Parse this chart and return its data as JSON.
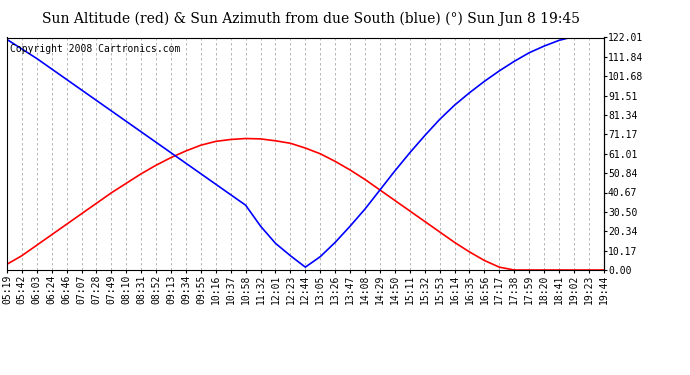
{
  "title": "Sun Altitude (red) & Sun Azimuth from due South (blue) (°) Sun Jun 8 19:45",
  "copyright": "Copyright 2008 Cartronics.com",
  "ymin": 0.0,
  "ymax": 122.01,
  "yticks": [
    0.0,
    10.17,
    20.34,
    30.5,
    40.67,
    50.84,
    61.01,
    71.17,
    81.34,
    91.51,
    101.68,
    111.84,
    122.01
  ],
  "x_labels": [
    "05:19",
    "05:42",
    "06:03",
    "06:24",
    "06:46",
    "07:07",
    "07:28",
    "07:49",
    "08:10",
    "08:31",
    "08:52",
    "09:13",
    "09:34",
    "09:55",
    "10:16",
    "10:37",
    "10:58",
    "11:32",
    "12:01",
    "12:23",
    "12:44",
    "13:05",
    "13:26",
    "13:47",
    "14:08",
    "14:29",
    "14:50",
    "15:11",
    "15:32",
    "15:53",
    "16:14",
    "16:35",
    "16:56",
    "17:17",
    "17:38",
    "17:59",
    "18:20",
    "18:41",
    "19:02",
    "19:23",
    "19:44"
  ],
  "red_values": [
    3.0,
    7.5,
    13.0,
    18.5,
    24.0,
    29.5,
    35.0,
    40.5,
    45.5,
    50.5,
    55.0,
    59.0,
    62.5,
    65.5,
    67.5,
    68.5,
    69.0,
    68.8,
    67.8,
    66.5,
    64.0,
    61.0,
    57.0,
    52.5,
    47.5,
    42.0,
    36.5,
    31.0,
    25.5,
    20.0,
    14.5,
    9.5,
    5.0,
    1.5,
    0.0,
    0.0,
    0.0,
    0.0,
    0.0,
    0.0,
    0.0
  ],
  "blue_values": [
    121.0,
    116.0,
    111.0,
    105.5,
    100.0,
    94.5,
    89.0,
    83.5,
    78.0,
    72.5,
    67.0,
    61.5,
    56.0,
    50.5,
    45.0,
    39.5,
    34.0,
    23.0,
    14.0,
    7.5,
    1.5,
    7.0,
    14.5,
    23.0,
    32.0,
    42.0,
    52.0,
    61.5,
    70.5,
    79.0,
    86.5,
    93.0,
    99.0,
    104.5,
    109.5,
    114.0,
    117.5,
    120.5,
    122.5,
    124.0,
    125.5
  ],
  "line_color_red": "#ff0000",
  "line_color_blue": "#0000ff",
  "bg_color": "#ffffff",
  "plot_bg_color": "#ffffff",
  "grid_color": "#aaaaaa",
  "title_fontsize": 10,
  "copyright_fontsize": 7,
  "tick_fontsize": 7
}
